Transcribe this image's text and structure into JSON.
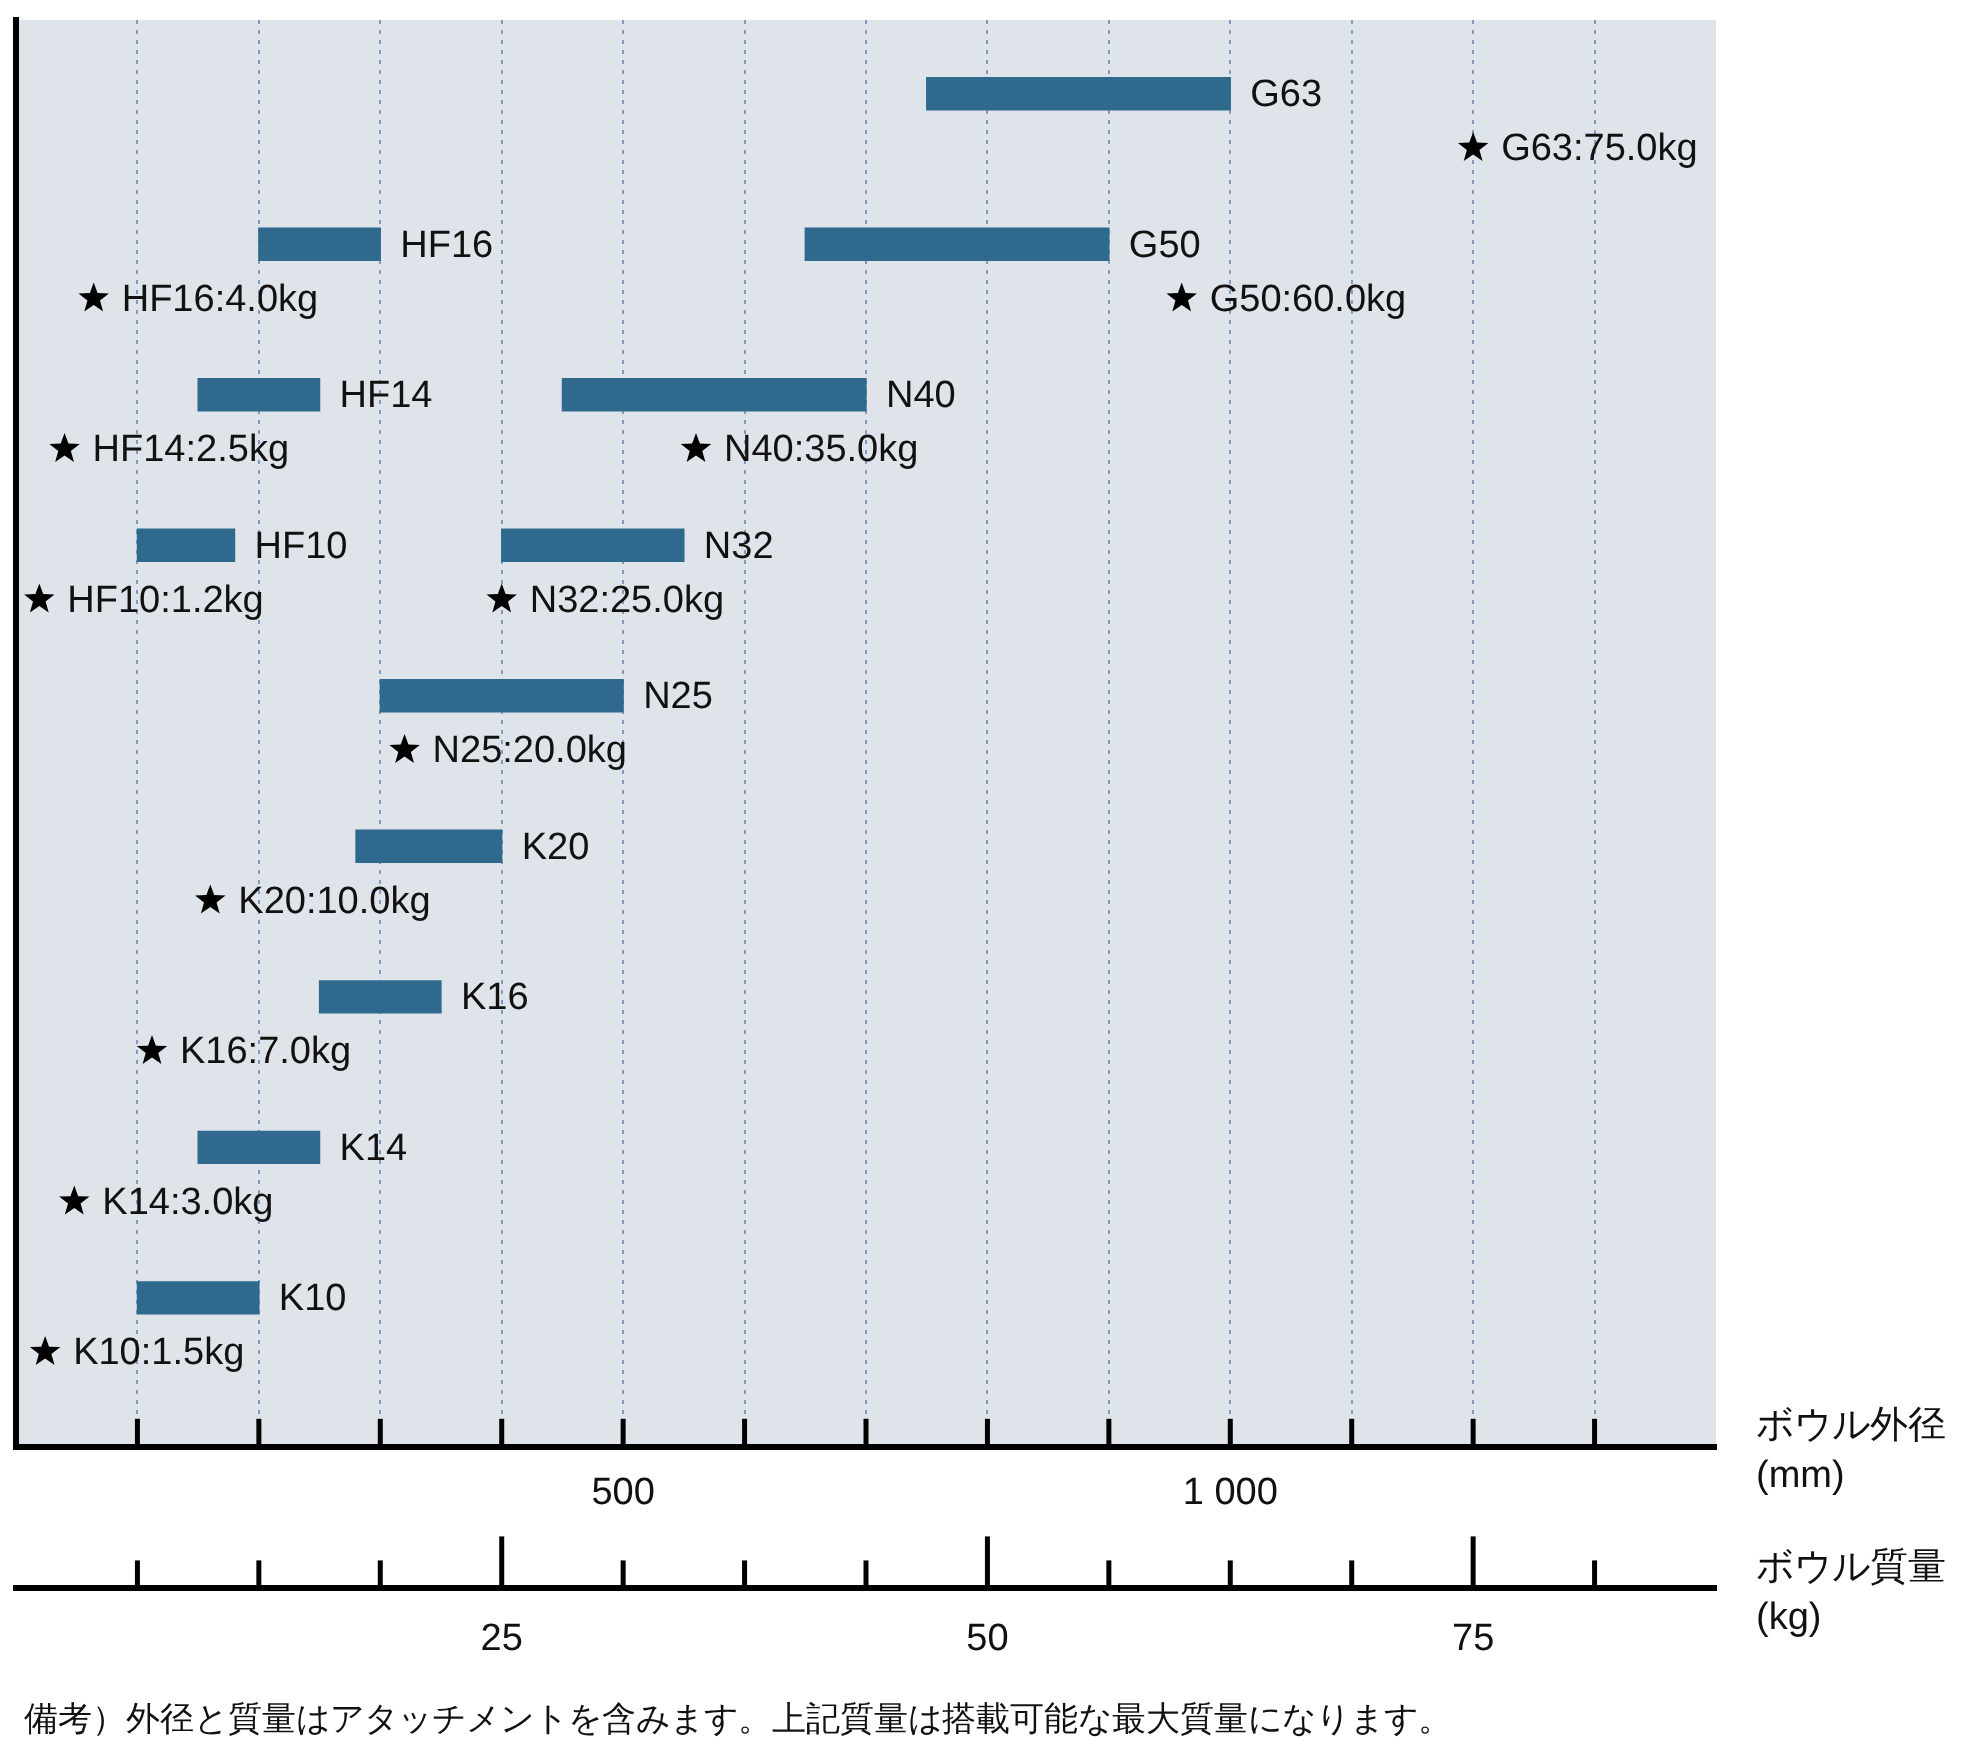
{
  "chart_data": {
    "type": "bar",
    "orientation": "horizontal",
    "categories": [
      null,
      null,
      null,
      null,
      null,
      null,
      null,
      null,
      null
    ],
    "xlabel": "ボウル外径 (mm)",
    "x2label": "ボウル質量 (kg)",
    "xlim": [
      0,
      1400
    ],
    "xticks": [
      {
        "value": 100,
        "label": null
      },
      {
        "value": 200,
        "label": null
      },
      {
        "value": 300,
        "label": null
      },
      {
        "value": 400,
        "label": null
      },
      500,
      {
        "value": 600,
        "label": null
      },
      {
        "value": 700,
        "label": null
      },
      {
        "value": 800,
        "label": null
      },
      {
        "value": 900,
        "label": null
      },
      {
        "value": 1000,
        "label": "1 000"
      },
      {
        "value": 1100,
        "label": null
      },
      {
        "value": 1200,
        "label": null
      },
      {
        "value": 1300,
        "label": null
      }
    ],
    "x2lim": [
      0,
      87.5
    ],
    "x2ticks": [
      {
        "value": 6.25,
        "label": null
      },
      {
        "value": 12.5,
        "label": null
      },
      {
        "value": 18.75,
        "label": null
      },
      25,
      {
        "value": 31.25,
        "label": null
      },
      {
        "value": 37.5,
        "label": null
      },
      {
        "value": 43.75,
        "label": null
      },
      50,
      {
        "value": 56.25,
        "label": null
      },
      {
        "value": 62.5,
        "label": null
      },
      {
        "value": 68.75,
        "label": null
      },
      75,
      {
        "value": 81.25,
        "label": null
      }
    ],
    "grid": "x",
    "tick_labels": "x",
    "legend": false,
    "series": [
      {
        "color": "#2f6a8e",
        "base": [
          null,
          200,
          150,
          100,
          null,
          null,
          null,
          null,
          null
        ],
        "values": [
          null,
          100,
          100,
          80,
          null,
          null,
          null,
          null,
          null
        ],
        "value_labels": [
          null,
          "HF16",
          "HF14",
          "HF10",
          null,
          null,
          null,
          null,
          null
        ]
      },
      {
        "color": "#2f6a8e",
        "base": [
          750,
          650,
          450,
          400,
          300,
          280,
          250,
          150,
          100
        ],
        "values": [
          250,
          250,
          250,
          150,
          200,
          120,
          100,
          100,
          100
        ],
        "value_labels": [
          "G63",
          "G50",
          "N40",
          "N32",
          "N25",
          "K20",
          "K16",
          "K14",
          "K10"
        ]
      },
      {
        "type": "scatter",
        "axis": "x2",
        "marker": "star",
        "color": "#000000",
        "values": [
          null,
          4.0,
          2.5,
          1.2,
          null,
          null,
          null,
          null,
          null
        ],
        "value_labels": [
          null,
          "HF16:4.0kg",
          "HF14:2.5kg",
          "HF10:1.2kg",
          null,
          null,
          null,
          null,
          null
        ]
      },
      {
        "type": "scatter",
        "axis": "x2",
        "marker": "star",
        "color": "#000000",
        "values": [
          75.0,
          60.0,
          35.0,
          25.0,
          20.0,
          10.0,
          7.0,
          3.0,
          1.5
        ],
        "value_labels": [
          "G63:75.0kg",
          "G50:60.0kg",
          "N40:35.0kg",
          "N32:25.0kg",
          "N25:20.0kg",
          "K20:10.0kg",
          "K16:7.0kg",
          "K14:3.0kg",
          "K10:1.5kg"
        ]
      }
    ],
    "annotations": [
      "備考）外径と質量はアタッチメントを含みます。上記質量は搭載可能な最大質量になります。"
    ]
  }
}
